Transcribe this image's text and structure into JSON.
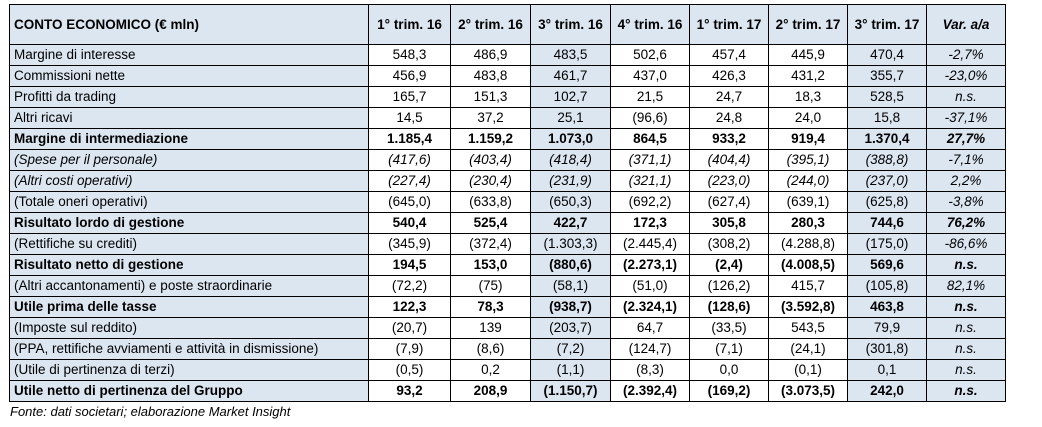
{
  "table": {
    "title": "CONTO ECONOMICO (€ mln)",
    "columns": [
      "1° trim. 16",
      "2° trim. 16",
      "3° trim. 16",
      "4° trim. 16",
      "1° trim. 17",
      "2° trim. 17",
      "3° trim. 17",
      "Var. a/a"
    ],
    "shading_color": "#dce6f1",
    "rows": [
      {
        "label": "Margine di interesse",
        "style": "normal",
        "values": [
          "548,3",
          "486,9",
          "483,5",
          "502,6",
          "457,4",
          "445,9",
          "470,4",
          "-2,7%"
        ]
      },
      {
        "label": "Commissioni nette",
        "style": "normal",
        "values": [
          "456,9",
          "483,8",
          "461,7",
          "437,0",
          "426,3",
          "431,2",
          "355,7",
          "-23,0%"
        ]
      },
      {
        "label": "Profitti da trading",
        "style": "normal",
        "values": [
          "165,7",
          "151,3",
          "102,7",
          "21,5",
          "24,7",
          "18,3",
          "528,5",
          "n.s."
        ]
      },
      {
        "label": "Altri ricavi",
        "style": "normal",
        "values": [
          "14,5",
          "37,2",
          "25,1",
          "(96,6)",
          "24,8",
          "24,0",
          "15,8",
          "-37,1%"
        ]
      },
      {
        "label": "Margine di intermediazione",
        "style": "bold",
        "values": [
          "1.185,4",
          "1.159,2",
          "1.073,0",
          "864,5",
          "933,2",
          "919,4",
          "1.370,4",
          "27,7%"
        ]
      },
      {
        "label": "(Spese per il personale)",
        "style": "italic",
        "values": [
          "(417,6)",
          "(403,4)",
          "(418,4)",
          "(371,1)",
          "(404,4)",
          "(395,1)",
          "(388,8)",
          "-7,1%"
        ]
      },
      {
        "label": "(Altri costi operativi)",
        "style": "italic",
        "values": [
          "(227,4)",
          "(230,4)",
          "(231,9)",
          "(321,1)",
          "(223,0)",
          "(244,0)",
          "(237,0)",
          "2,2%"
        ]
      },
      {
        "label": "(Totale oneri operativi)",
        "style": "normal",
        "values": [
          "(645,0)",
          "(633,8)",
          "(650,3)",
          "(692,2)",
          "(627,4)",
          "(639,1)",
          "(625,8)",
          "-3,8%"
        ]
      },
      {
        "label": "Risultato lordo di gestione",
        "style": "bold",
        "values": [
          "540,4",
          "525,4",
          "422,7",
          "172,3",
          "305,8",
          "280,3",
          "744,6",
          "76,2%"
        ]
      },
      {
        "label": "(Rettifiche su crediti)",
        "style": "normal",
        "values": [
          "(345,9)",
          "(372,4)",
          "(1.303,3)",
          "(2.445,4)",
          "(308,2)",
          "(4.288,8)",
          "(175,0)",
          "-86,6%"
        ]
      },
      {
        "label": "Risultato netto di gestione",
        "style": "bold",
        "values": [
          "194,5",
          "153,0",
          "(880,6)",
          "(2.273,1)",
          "(2,4)",
          "(4.008,5)",
          "569,6",
          "n.s."
        ]
      },
      {
        "label": "(Altri accantonamenti) e poste straordinarie",
        "style": "normal",
        "values": [
          "(72,2)",
          "(75)",
          "(58,1)",
          "(51,0)",
          "(126,2)",
          "415,7",
          "(105,8)",
          "82,1%"
        ]
      },
      {
        "label": "Utile prima delle tasse",
        "style": "bold",
        "values": [
          "122,3",
          "78,3",
          "(938,7)",
          "(2.324,1)",
          "(128,6)",
          "(3.592,8)",
          "463,8",
          "n.s."
        ]
      },
      {
        "label": "(Imposte sul reddito)",
        "style": "normal",
        "values": [
          "(20,7)",
          "139",
          "(203,7)",
          "64,7",
          "(33,5)",
          "543,5",
          "79,9",
          "n.s."
        ]
      },
      {
        "label": "(PPA, rettifiche avviamenti e attività in dismissione)",
        "style": "normal",
        "values": [
          "(7,9)",
          "(8,6)",
          "(7,2)",
          "(124,7)",
          "(7,1)",
          "(24,1)",
          "(301,8)",
          "n.s."
        ]
      },
      {
        "label": "(Utile di pertinenza di terzi)",
        "style": "normal",
        "values": [
          "(0,5)",
          "0,2",
          "(1,1)",
          "(8,3)",
          "0,0",
          "(0,1)",
          "0,1",
          "n.s."
        ]
      },
      {
        "label": "Utile netto di pertinenza del Gruppo",
        "style": "bold",
        "values": [
          "93,2",
          "208,9",
          "(1.150,7)",
          "(2.392,4)",
          "(169,2)",
          "(3.073,5)",
          "242,0",
          "n.s."
        ]
      }
    ]
  },
  "footer": "Fonte: dati societari; elaborazione Market Insight"
}
